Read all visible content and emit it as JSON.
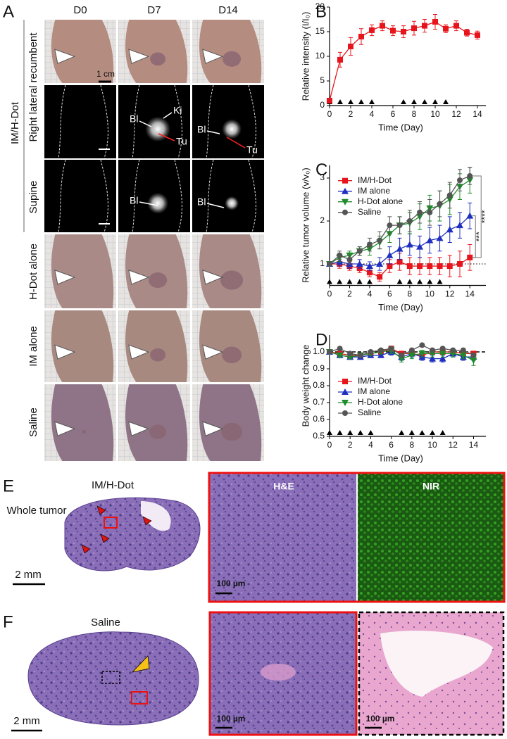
{
  "figure": {
    "panel_a": {
      "letter": "A",
      "columns": [
        "D0",
        "D7",
        "D14"
      ],
      "group_label": "IM/H-Dot",
      "rows": [
        "Right lateral recumbent",
        "Supine",
        "H-Dot alone",
        "IM alone",
        "Saline"
      ],
      "scale": "1 cm",
      "annotations": {
        "bl": "Bl",
        "ki": "Ki",
        "tu": "Tu"
      }
    },
    "panel_e": {
      "letter": "E",
      "title": "IM/H-Dot",
      "subtitle": "Whole tumor",
      "scale": "2 mm",
      "stains": [
        "H&E",
        "NIR"
      ],
      "inset_scale": "100 µm"
    },
    "panel_f": {
      "letter": "F",
      "title": "Saline",
      "scale": "2 mm",
      "inset_scale": "100 µm"
    }
  },
  "chart_data": [
    {
      "type": "line",
      "letter": "B",
      "xlabel": "Time (Day)",
      "ylabel": "Relative intensity (I/I₀)",
      "x": [
        0,
        1,
        2,
        3,
        4,
        5,
        6,
        7,
        8,
        9,
        10,
        11,
        12,
        13,
        14
      ],
      "xlim": [
        0,
        14.8
      ],
      "xticks": [
        0,
        2,
        4,
        6,
        8,
        10,
        12,
        14
      ],
      "ylim": [
        0,
        20
      ],
      "yticks": [
        0,
        5,
        10,
        15,
        20
      ],
      "treatment_days": [
        0,
        1,
        2,
        3,
        4,
        7,
        8,
        9,
        10,
        11
      ],
      "series": [
        {
          "color": "#e8141b",
          "marker": "square",
          "values": [
            1,
            9.3,
            12,
            14,
            15.3,
            16.2,
            15.2,
            15,
            15.7,
            16.2,
            17,
            15.6,
            16.2,
            14.8,
            14.3
          ],
          "errors": [
            0.3,
            1.5,
            1.8,
            1.6,
            1.1,
            1.0,
            1.0,
            1.2,
            1.4,
            1.3,
            1.5,
            0.8,
            1.0,
            0.7,
            0.8
          ]
        }
      ]
    },
    {
      "type": "line",
      "letter": "C",
      "xlabel": "Time (Day)",
      "ylabel": "Relative tumor volume (v/v₀)",
      "x": [
        0,
        1,
        2,
        3,
        4,
        5,
        6,
        7,
        8,
        9,
        10,
        11,
        12,
        13,
        14
      ],
      "xlim": [
        0,
        15.6
      ],
      "xticks": [
        0,
        2,
        4,
        6,
        8,
        10,
        12,
        14
      ],
      "ylim": [
        0.5,
        3.3
      ],
      "yticks": [
        1,
        2,
        3
      ],
      "reference_line": 1,
      "reference_style": "dotted",
      "treatment_days": [
        0,
        1,
        2,
        3,
        4,
        7,
        8,
        9,
        10,
        11
      ],
      "legend": "upper left",
      "significance": [
        "****",
        "***"
      ],
      "series": [
        {
          "name": "IM/H-Dot",
          "color": "#e8141b",
          "marker": "square",
          "values": [
            1,
            1.0,
            0.95,
            0.9,
            0.8,
            0.7,
            0.95,
            1.05,
            0.95,
            0.95,
            0.95,
            0.95,
            0.95,
            1.0,
            1.15
          ],
          "errors": [
            0,
            0.1,
            0.1,
            0.1,
            0.1,
            0.1,
            0.15,
            0.2,
            0.2,
            0.2,
            0.2,
            0.2,
            0.25,
            0.3,
            0.3
          ]
        },
        {
          "name": "IM alone",
          "color": "#1f2fbf",
          "marker": "up",
          "values": [
            1,
            1.05,
            1.0,
            1.0,
            0.95,
            1.0,
            1.2,
            1.35,
            1.45,
            1.4,
            1.55,
            1.6,
            1.8,
            1.9,
            2.12
          ],
          "errors": [
            0,
            0.1,
            0.1,
            0.1,
            0.1,
            0.15,
            0.2,
            0.25,
            0.25,
            0.25,
            0.3,
            0.3,
            0.3,
            0.3,
            0.3
          ]
        },
        {
          "name": "H-Dot alone",
          "color": "#1e8c2a",
          "marker": "down",
          "values": [
            1,
            1.15,
            1.2,
            1.3,
            1.35,
            1.5,
            1.7,
            1.9,
            1.95,
            2.1,
            2.3,
            2.35,
            2.5,
            2.8,
            2.95
          ],
          "errors": [
            0,
            0.1,
            0.1,
            0.1,
            0.15,
            0.15,
            0.2,
            0.2,
            0.25,
            0.3,
            0.3,
            0.35,
            0.35,
            0.3,
            0.3
          ]
        },
        {
          "name": "Saline",
          "color": "#555555",
          "marker": "circle",
          "values": [
            1,
            1.2,
            1.1,
            1.3,
            1.45,
            1.55,
            1.9,
            1.9,
            2.0,
            2.2,
            2.2,
            2.4,
            2.6,
            2.95,
            3.05
          ],
          "errors": [
            0,
            0.1,
            0.1,
            0.1,
            0.15,
            0.2,
            0.2,
            0.2,
            0.25,
            0.25,
            0.3,
            0.3,
            0.3,
            0.25,
            0.2
          ]
        }
      ]
    },
    {
      "type": "line",
      "letter": "D",
      "xlabel": "Time (Day)",
      "ylabel": "Body weight change",
      "x": [
        0,
        1,
        2,
        3,
        4,
        5,
        6,
        7,
        8,
        9,
        10,
        11,
        12,
        13,
        14
      ],
      "xlim": [
        0,
        15.2
      ],
      "xticks": [
        0,
        2,
        4,
        6,
        8,
        10,
        12,
        14
      ],
      "ylim": [
        0.5,
        1.1
      ],
      "yticks": [
        0.5,
        0.6,
        0.7,
        0.8,
        0.9,
        {
          "value": 1,
          "label": "1.0"
        }
      ],
      "reference_line": 1,
      "reference_style": "dashed",
      "treatment_days": [
        0,
        1,
        2,
        3,
        4,
        7,
        8,
        9,
        10,
        11
      ],
      "legend": "lower left",
      "series": [
        {
          "name": "IM/H-Dot",
          "color": "#e8141b",
          "marker": "square",
          "values": [
            1,
            0.99,
            0.98,
            0.98,
            0.99,
            1.0,
            1.02,
            0.99,
            0.99,
            0.98,
            1.0,
            1.0,
            1.0,
            0.99,
            0.99
          ],
          "errors": [
            0,
            0.01,
            0.01,
            0.01,
            0.01,
            0.01,
            0.01,
            0.01,
            0.01,
            0.01,
            0.01,
            0.01,
            0.01,
            0.01,
            0.01
          ]
        },
        {
          "name": "IM alone",
          "color": "#1f2fbf",
          "marker": "up",
          "values": [
            1,
            0.98,
            0.97,
            0.97,
            0.98,
            0.98,
            1.0,
            0.97,
            0.99,
            0.97,
            0.96,
            0.96,
            0.99,
            0.97,
            0.97
          ],
          "errors": [
            0,
            0.01,
            0.01,
            0.01,
            0.01,
            0.01,
            0.02,
            0.02,
            0.02,
            0.02,
            0.02,
            0.02,
            0.02,
            0.02,
            0.02
          ]
        },
        {
          "name": "H-Dot alone",
          "color": "#1e8c2a",
          "marker": "down",
          "values": [
            1,
            0.98,
            0.97,
            0.98,
            0.99,
            1.0,
            1.01,
            0.96,
            0.98,
            0.99,
            0.99,
            0.99,
            0.99,
            0.98,
            0.95
          ],
          "errors": [
            0,
            0.01,
            0.01,
            0.01,
            0.01,
            0.01,
            0.02,
            0.02,
            0.02,
            0.02,
            0.02,
            0.02,
            0.02,
            0.02,
            0.03
          ]
        },
        {
          "name": "Saline",
          "color": "#555555",
          "marker": "circle",
          "values": [
            1,
            1.02,
            0.99,
            0.98,
            1.0,
            1.01,
            1.02,
            0.98,
            1.01,
            1.04,
            1.01,
            1.02,
            1.01,
            1.01,
            0.98
          ],
          "errors": [
            0,
            0.01,
            0.01,
            0.01,
            0.01,
            0.01,
            0.01,
            0.01,
            0.01,
            0.01,
            0.01,
            0.01,
            0.01,
            0.01,
            0.01
          ]
        }
      ]
    }
  ]
}
